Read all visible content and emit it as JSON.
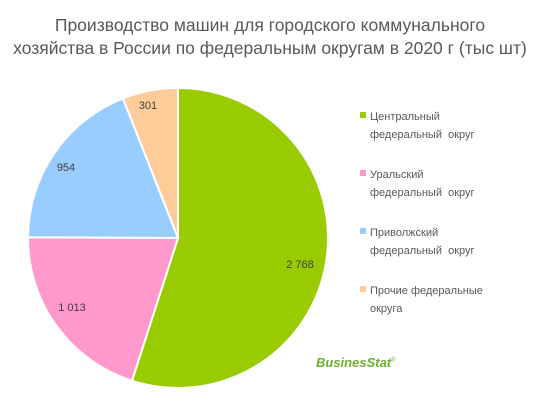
{
  "title_lines": [
    "Производство машин для городского коммунального",
    "хозяйства в России по федеральным округам в 2020 г (тыс шт)"
  ],
  "watermark": {
    "name": "BusinesStat",
    "mark": "®"
  },
  "chart_data": {
    "type": "pie",
    "title": "Производство машин для городского коммунального хозяйства в России по федеральным округам в 2020 г (тыс шт)",
    "legend_position": "right",
    "slices": [
      {
        "label": "Центральный федеральный округ",
        "legend_lines": [
          "Центральный",
          "федеральный  округ"
        ],
        "value": 2768,
        "display": "2 768",
        "color": "#99cc00"
      },
      {
        "label": "Уральский федеральный округ",
        "legend_lines": [
          "Уральский",
          "федеральный  округ"
        ],
        "value": 1013,
        "display": "1 013",
        "color": "#ff99cc"
      },
      {
        "label": "Приволжский федеральный округ",
        "legend_lines": [
          "Приволжский",
          "федеральный  округ"
        ],
        "value": 954,
        "display": "954",
        "color": "#99ccff"
      },
      {
        "label": "Прочие федеральные округа",
        "legend_lines": [
          "Прочие федеральные",
          "округа"
        ],
        "value": 301,
        "display": "301",
        "color": "#ffcc99"
      }
    ]
  }
}
